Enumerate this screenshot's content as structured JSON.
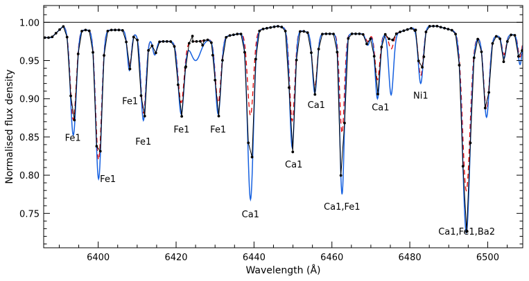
{
  "chart_data": {
    "type": "line",
    "xlabel": "Wavelength (Å)",
    "ylabel": "Normalised flux density",
    "xlim": [
      6386,
      6509
    ],
    "ylim": [
      0.705,
      1.022
    ],
    "xticks": [
      6400,
      6420,
      6440,
      6460,
      6480,
      6500
    ],
    "yticks": [
      0.75,
      0.8,
      0.85,
      0.9,
      0.95,
      1.0
    ],
    "xtick_labels": [
      "6400",
      "6420",
      "6440",
      "6460",
      "6480",
      "6500"
    ],
    "ytick_labels": [
      "0.75",
      "0.80",
      "0.85",
      "0.90",
      "0.95",
      "1.00"
    ],
    "reference_line_y": 1.0,
    "grid": false,
    "continuum": [
      {
        "x": 6388,
        "y": 0.98
      },
      {
        "x": 6391,
        "y": 0.995
      },
      {
        "x": 6396,
        "y": 0.99
      },
      {
        "x": 6406,
        "y": 0.99
      },
      {
        "x": 6416,
        "y": 0.975
      },
      {
        "x": 6426,
        "y": 0.975
      },
      {
        "x": 6436,
        "y": 0.985
      },
      {
        "x": 6446,
        "y": 0.995
      },
      {
        "x": 6456,
        "y": 0.985
      },
      {
        "x": 6466,
        "y": 0.985
      },
      {
        "x": 6476,
        "y": 0.985
      },
      {
        "x": 6482,
        "y": 0.995
      },
      {
        "x": 6487,
        "y": 0.995
      },
      {
        "x": 6498,
        "y": 0.98
      },
      {
        "x": 6509,
        "y": 0.985
      }
    ],
    "lines": [
      {
        "center": 6393.6,
        "obs_depth": 0.13,
        "model_depth": 0.14,
        "dashed_depth": 0.12,
        "width": 0.75
      },
      {
        "center": 6400.1,
        "obs_depth": 0.19,
        "model_depth": 0.195,
        "dashed_depth": 0.17,
        "width": 0.75
      },
      {
        "center": 6408.0,
        "obs_depth": 0.05,
        "model_depth": 0.05,
        "dashed_depth": 0.045,
        "width": 0.5
      },
      {
        "center": 6411.6,
        "obs_depth": 0.12,
        "model_depth": 0.11,
        "dashed_depth": 0.1,
        "width": 0.65
      },
      {
        "center": 6414.5,
        "obs_depth": 0.02,
        "model_depth": 0.02,
        "dashed_depth": 0.02,
        "width": 0.5
      },
      {
        "center": 6421.3,
        "obs_depth": 0.1,
        "model_depth": 0.095,
        "dashed_depth": 0.08,
        "width": 0.75
      },
      {
        "center": 6425.0,
        "obs_depth": 0.0,
        "model_depth": 0.025,
        "dashed_depth": 0.0,
        "width": 1.2
      },
      {
        "center": 6430.8,
        "obs_depth": 0.105,
        "model_depth": 0.1,
        "dashed_depth": 0.085,
        "width": 0.7
      },
      {
        "center": 6439.1,
        "obs_depth": 0.19,
        "model_depth": 0.22,
        "dashed_depth": 0.11,
        "width": 0.75
      },
      {
        "center": 6449.8,
        "obs_depth": 0.165,
        "model_depth": 0.155,
        "dashed_depth": 0.12,
        "width": 0.65
      },
      {
        "center": 6455.6,
        "obs_depth": 0.08,
        "model_depth": 0.078,
        "dashed_depth": 0.07,
        "width": 0.6
      },
      {
        "center": 6462.6,
        "obs_depth": 0.21,
        "model_depth": 0.21,
        "dashed_depth": 0.13,
        "width": 0.6
      },
      {
        "center": 6469.2,
        "obs_depth": 0.015,
        "model_depth": 0.015,
        "dashed_depth": 0.01,
        "width": 0.5
      },
      {
        "center": 6471.7,
        "obs_depth": 0.08,
        "model_depth": 0.085,
        "dashed_depth": 0.06,
        "width": 0.6
      },
      {
        "center": 6475.2,
        "obs_depth": 0.01,
        "model_depth": 0.08,
        "dashed_depth": 0.02,
        "width": 0.6
      },
      {
        "center": 6482.8,
        "obs_depth": 0.065,
        "model_depth": 0.075,
        "dashed_depth": 0.065,
        "width": 0.65
      },
      {
        "center": 6494.5,
        "obs_depth": 0.26,
        "model_depth": 0.26,
        "dashed_depth": 0.205,
        "width": 0.95
      },
      {
        "center": 6499.7,
        "obs_depth": 0.105,
        "model_depth": 0.105,
        "dashed_depth": 0.095,
        "width": 0.7
      },
      {
        "center": 6504.2,
        "obs_depth": 0.035,
        "model_depth": 0.03,
        "dashed_depth": 0.025,
        "width": 0.5
      },
      {
        "center": 6508.3,
        "obs_depth": 0.04,
        "model_depth": 0.04,
        "dashed_depth": 0.03,
        "width": 0.5
      }
    ],
    "observed_points": [
      {
        "x": 6429.4,
        "y": 0.957
      },
      {
        "x": 6422.5,
        "y": 0.942
      },
      {
        "x": 6424.2,
        "y": 0.982
      },
      {
        "x": 6426.8,
        "y": 0.97
      },
      {
        "x": 6483.6,
        "y": 0.955
      },
      {
        "x": 6481.5,
        "y": 0.99
      }
    ],
    "series": [
      {
        "style": "black-dots",
        "color": "#000000"
      },
      {
        "style": "blue-solid",
        "color": "#1560e0"
      },
      {
        "style": "red-dashed",
        "color": "#e00000"
      }
    ],
    "annotations": [
      {
        "text": "Fe1",
        "x": 6393.5,
        "y": 0.845
      },
      {
        "text": "Fe1",
        "x": 6402.5,
        "y": 0.791
      },
      {
        "text": "Fe1",
        "x": 6408.2,
        "y": 0.893
      },
      {
        "text": "Fe1",
        "x": 6411.6,
        "y": 0.84
      },
      {
        "text": "Fe1",
        "x": 6421.4,
        "y": 0.856
      },
      {
        "text": "Fe1",
        "x": 6430.8,
        "y": 0.856
      },
      {
        "text": "Ca1",
        "x": 6439.1,
        "y": 0.745
      },
      {
        "text": "Ca1",
        "x": 6450.2,
        "y": 0.81
      },
      {
        "text": "Ca1",
        "x": 6456.0,
        "y": 0.888
      },
      {
        "text": "Ca1,Fe1",
        "x": 6462.6,
        "y": 0.755
      },
      {
        "text": "Ca1",
        "x": 6472.5,
        "y": 0.885
      },
      {
        "text": "Ni1",
        "x": 6482.8,
        "y": 0.9
      },
      {
        "text": "Ca1,Fe1,Ba2",
        "x": 6494.6,
        "y": 0.722
      }
    ]
  }
}
